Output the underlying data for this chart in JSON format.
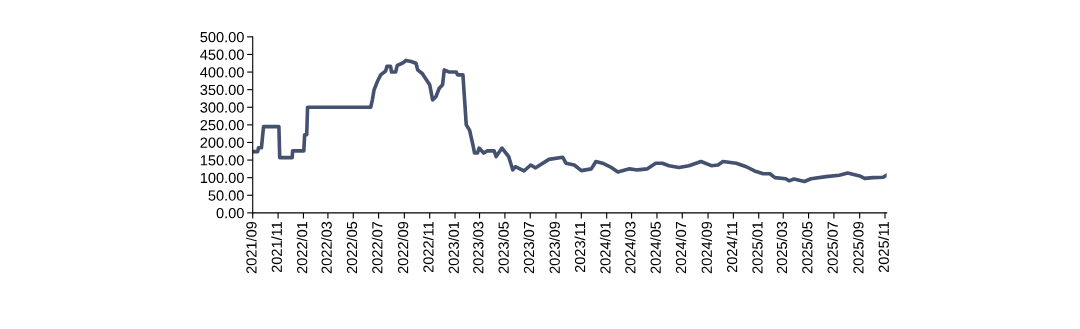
{
  "chart_data": {
    "type": "line",
    "x": [
      "2021-09-01",
      "2021-09-13",
      "2021-09-15",
      "2021-09-22",
      "2021-09-27",
      "2021-11-03",
      "2021-11-05",
      "2021-12-05",
      "2021-12-06",
      "2022-01-02",
      "2022-01-04",
      "2022-01-09",
      "2022-01-11",
      "2022-06-12",
      "2022-06-16",
      "2022-06-20",
      "2022-06-28",
      "2022-07-06",
      "2022-07-18",
      "2022-07-21",
      "2022-07-30",
      "2022-08-01",
      "2022-08-11",
      "2022-08-15",
      "2022-08-27",
      "2022-09-05",
      "2022-09-17",
      "2022-09-29",
      "2022-10-03",
      "2022-10-14",
      "2022-10-22",
      "2022-11-01",
      "2022-11-08",
      "2022-11-16",
      "2022-11-24",
      "2022-12-02",
      "2022-12-06",
      "2022-12-18",
      "2023-01-04",
      "2023-01-07",
      "2023-01-20",
      "2023-01-24",
      "2023-01-28",
      "2023-02-05",
      "2023-02-13",
      "2023-02-17",
      "2023-02-24",
      "2023-02-28",
      "2023-03-11",
      "2023-03-19",
      "2023-04-05",
      "2023-04-10",
      "2023-04-24",
      "2023-05-10",
      "2023-05-20",
      "2023-05-26",
      "2023-06-16",
      "2023-07-02",
      "2023-07-14",
      "2023-08-15",
      "2023-09-17",
      "2023-09-25",
      "2023-10-15",
      "2023-11-01",
      "2023-11-25",
      "2023-12-06",
      "2023-12-22",
      "2024-01-12",
      "2024-01-28",
      "2024-02-25",
      "2024-03-15",
      "2024-04-08",
      "2024-04-28",
      "2024-05-14",
      "2024-05-30",
      "2024-06-23",
      "2024-07-17",
      "2024-08-15",
      "2024-09-09",
      "2024-09-25",
      "2024-10-07",
      "2024-11-08",
      "2024-12-02",
      "2024-12-22",
      "2025-01-12",
      "2025-01-28",
      "2025-02-09",
      "2025-03-07",
      "2025-03-15",
      "2025-03-27",
      "2025-04-21",
      "2025-05-07",
      "2025-06-12",
      "2025-07-14",
      "2025-08-03",
      "2025-09-01",
      "2025-09-13",
      "2025-10-03",
      "2025-10-27",
      "2025-11-05"
    ],
    "series": [
      {
        "color": "#44516f",
        "values": [
          174,
          174,
          185,
          185,
          245,
          245,
          157,
          157,
          176,
          176,
          222,
          222,
          300,
          300,
          321,
          349,
          373,
          392,
          403,
          416,
          416,
          400,
          400,
          419,
          425,
          433,
          430,
          425,
          406,
          396,
          382,
          364,
          321,
          330,
          354,
          364,
          406,
          400,
          400,
          392,
          392,
          321,
          250,
          235,
          193,
          170,
          170,
          184,
          170,
          176,
          176,
          160,
          184,
          160,
          122,
          131,
          119,
          136,
          128,
          152,
          158,
          141,
          136,
          120,
          125,
          146,
          141,
          129,
          116,
          125,
          122,
          125,
          141,
          141,
          134,
          129,
          134,
          146,
          134,
          136,
          146,
          141,
          131,
          119,
          111,
          111,
          100,
          97,
          91,
          96,
          89,
          97,
          103,
          107,
          113,
          105,
          98,
          100,
          101,
          107
        ]
      }
    ],
    "xlim": [
      "2021-09-01",
      "2025-11-05"
    ],
    "xticks": [
      {
        "value": "2021-09-01",
        "label": "2021/09"
      },
      {
        "value": "2021-11-01",
        "label": "2021/11"
      },
      {
        "value": "2022-01-01",
        "label": "2022/01"
      },
      {
        "value": "2022-03-01",
        "label": "2022/03"
      },
      {
        "value": "2022-05-01",
        "label": "2022/05"
      },
      {
        "value": "2022-07-01",
        "label": "2022/07"
      },
      {
        "value": "2022-09-01",
        "label": "2022/09"
      },
      {
        "value": "2022-11-01",
        "label": "2022/11"
      },
      {
        "value": "2023-01-01",
        "label": "2023/01"
      },
      {
        "value": "2023-03-01",
        "label": "2023/03"
      },
      {
        "value": "2023-05-01",
        "label": "2023/05"
      },
      {
        "value": "2023-07-01",
        "label": "2023/07"
      },
      {
        "value": "2023-09-01",
        "label": "2023/09"
      },
      {
        "value": "2023-11-01",
        "label": "2023/11"
      },
      {
        "value": "2024-01-01",
        "label": "2024/01"
      },
      {
        "value": "2024-03-01",
        "label": "2024/03"
      },
      {
        "value": "2024-05-01",
        "label": "2024/05"
      },
      {
        "value": "2024-07-01",
        "label": "2024/07"
      },
      {
        "value": "2024-09-01",
        "label": "2024/09"
      },
      {
        "value": "2024-11-01",
        "label": "2024/11"
      },
      {
        "value": "2025-01-01",
        "label": "2025/01"
      },
      {
        "value": "2025-03-01",
        "label": "2025/03"
      },
      {
        "value": "2025-05-01",
        "label": "2025/05"
      },
      {
        "value": "2025-07-01",
        "label": "2025/07"
      },
      {
        "value": "2025-09-01",
        "label": "2025/09"
      },
      {
        "value": "2025-11-01",
        "label": "2025/11"
      }
    ],
    "ylim": [
      0,
      500
    ],
    "yticks": [
      {
        "value": 0,
        "label": "0.00"
      },
      {
        "value": 50,
        "label": "50.00"
      },
      {
        "value": 100,
        "label": "100.00"
      },
      {
        "value": 150,
        "label": "150.00"
      },
      {
        "value": 200,
        "label": "200.00"
      },
      {
        "value": 250,
        "label": "250.00"
      },
      {
        "value": 300,
        "label": "300.00"
      },
      {
        "value": 350,
        "label": "350.00"
      },
      {
        "value": 400,
        "label": "400.00"
      },
      {
        "value": 450,
        "label": "450.00"
      },
      {
        "value": 500,
        "label": "500.00"
      }
    ],
    "grid": false,
    "marker": "none",
    "line_style": "solid"
  }
}
